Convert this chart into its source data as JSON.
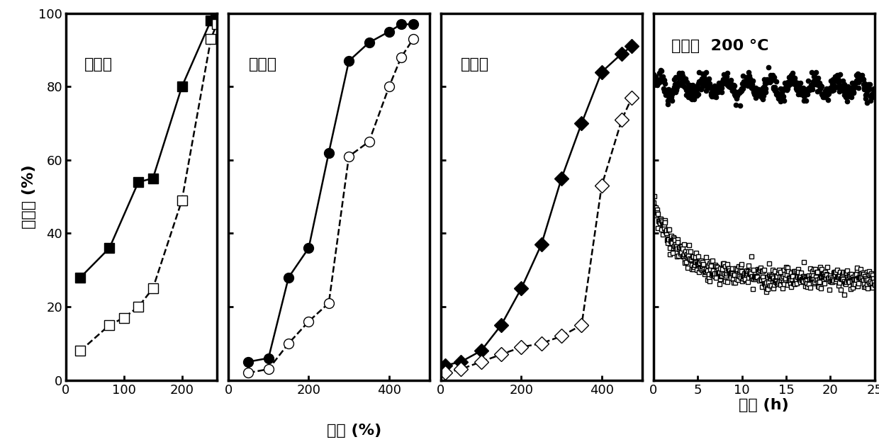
{
  "panel1_title": "苯乙烯",
  "panel2_title": "正己烷",
  "panel3_title": "环己烷",
  "panel4_title": "苯乙烯  200 °C",
  "xlabel_temp": "温度 (%)",
  "xlabel_time": "时间 (h)",
  "ylabel": "降解率 (%)",
  "ylim": [
    0,
    100
  ],
  "panel1_filled_x": [
    25,
    75,
    125,
    150,
    200,
    250,
    258
  ],
  "panel1_filled_y": [
    28,
    36,
    54,
    55,
    80,
    98,
    100
  ],
  "panel1_open_x": [
    25,
    75,
    100,
    125,
    150,
    200,
    250,
    260
  ],
  "panel1_open_y": [
    8,
    15,
    17,
    20,
    25,
    49,
    93,
    97
  ],
  "panel2_filled_x": [
    50,
    100,
    150,
    200,
    250,
    300,
    350,
    400,
    430,
    460
  ],
  "panel2_filled_y": [
    5,
    6,
    28,
    36,
    62,
    87,
    92,
    95,
    97,
    97
  ],
  "panel2_open_x": [
    50,
    100,
    150,
    200,
    250,
    300,
    350,
    400,
    430,
    460
  ],
  "panel2_open_y": [
    2,
    3,
    10,
    16,
    21,
    61,
    65,
    80,
    88,
    93
  ],
  "panel3_filled_x": [
    10,
    50,
    100,
    150,
    200,
    250,
    300,
    350,
    400,
    450,
    475
  ],
  "panel3_filled_y": [
    4,
    5,
    8,
    15,
    25,
    37,
    55,
    70,
    84,
    89,
    91
  ],
  "panel3_open_x": [
    10,
    50,
    100,
    150,
    200,
    250,
    300,
    350,
    400,
    450,
    475
  ],
  "panel3_open_y": [
    2,
    3,
    5,
    7,
    9,
    10,
    12,
    15,
    53,
    71,
    77
  ],
  "panel4_npoints": 500,
  "panel4_xlim": [
    0,
    25
  ],
  "panel1_xlim": [
    0,
    260
  ],
  "panel2_xlim": [
    0,
    500
  ],
  "panel3_xlim": [
    0,
    500
  ],
  "panel1_xticks": [
    0,
    100,
    200
  ],
  "panel2_xticks": [
    0,
    200,
    400
  ],
  "panel3_xticks": [
    0,
    200,
    400
  ],
  "panel4_xticks": [
    0,
    5,
    10,
    15,
    20,
    25
  ],
  "marker_size": 10,
  "line_width": 1.8,
  "font_size_label": 16,
  "font_size_title": 16,
  "font_size_tick": 13,
  "background": "#ffffff",
  "line_color": "#000000"
}
